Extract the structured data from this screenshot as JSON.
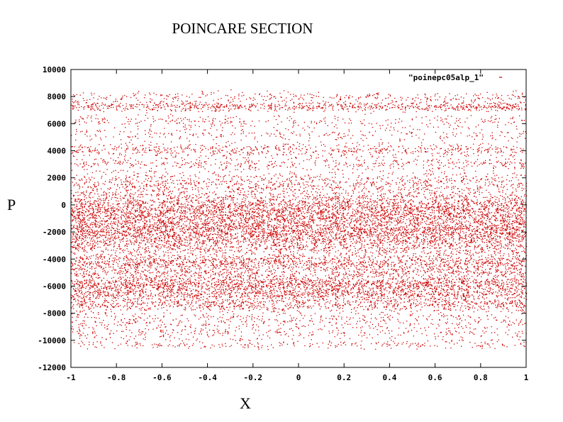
{
  "chart_data": {
    "type": "scatter",
    "title": "POINCARE SECTION",
    "xlabel": "X",
    "ylabel": "P",
    "xlim": [
      -1,
      1
    ],
    "ylim": [
      -12000,
      10000
    ],
    "x_ticks": [
      -1,
      -0.8,
      -0.6,
      -0.4,
      -0.2,
      0,
      0.2,
      0.4,
      0.6,
      0.8,
      1
    ],
    "x_tick_labels": [
      "-1",
      "-0.8",
      "-0.6",
      "-0.4",
      "-0.2",
      "0",
      "0.2",
      "0.4",
      "0.6",
      "0.8",
      "1"
    ],
    "y_ticks": [
      10000,
      8000,
      6000,
      4000,
      2000,
      0,
      -2000,
      -4000,
      -6000,
      -8000,
      -10000,
      -12000
    ],
    "y_tick_labels": [
      "10000",
      "8000",
      "6000",
      "4000",
      "2000",
      "0",
      "-2000",
      "-4000",
      "-6000",
      "-8000",
      "-10000",
      "-12000"
    ],
    "grid": false,
    "legend_position": "top-right",
    "series": [
      {
        "name": "\"poinepc05alp_1\"",
        "color": "#cc0000",
        "x_range": [
          -1,
          1
        ],
        "p_bands": [
          {
            "center": 8000,
            "spread": 200,
            "density": 0.35
          },
          {
            "center": 7300,
            "spread": 180,
            "density": 0.9
          },
          {
            "center": 6200,
            "spread": 250,
            "density": 0.35
          },
          {
            "center": 5200,
            "spread": 250,
            "density": 0.3
          },
          {
            "center": 4100,
            "spread": 250,
            "density": 0.7
          },
          {
            "center": 3100,
            "spread": 250,
            "density": 0.5
          },
          {
            "center": 1600,
            "spread": 500,
            "density": 1.2
          },
          {
            "center": 0,
            "spread": 500,
            "density": 2.4
          },
          {
            "center": -1000,
            "spread": 450,
            "density": 2.0
          },
          {
            "center": -2000,
            "spread": 400,
            "density": 2.4
          },
          {
            "center": -3000,
            "spread": 400,
            "density": 1.4
          },
          {
            "center": -4200,
            "spread": 300,
            "density": 1.4
          },
          {
            "center": -5000,
            "spread": 300,
            "density": 0.9
          },
          {
            "center": -5800,
            "spread": 250,
            "density": 1.5
          },
          {
            "center": -6500,
            "spread": 250,
            "density": 1.3
          },
          {
            "center": -7300,
            "spread": 250,
            "density": 1.0
          },
          {
            "center": -8500,
            "spread": 400,
            "density": 0.6
          },
          {
            "center": -9500,
            "spread": 300,
            "density": 0.35
          },
          {
            "center": -10300,
            "spread": 150,
            "density": 0.25
          }
        ]
      }
    ]
  }
}
